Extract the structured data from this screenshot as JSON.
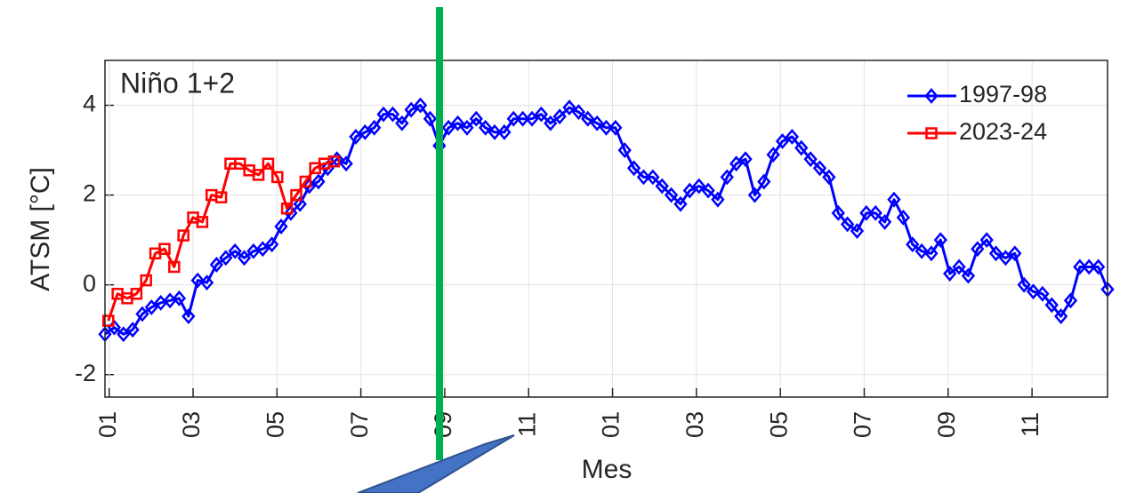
{
  "chart_data": {
    "type": "line",
    "annotation": "Niño 1+2",
    "xlabel": "Mes",
    "ylabel": "ATSM [°C]",
    "xlim": [
      -0.1,
      23.8
    ],
    "ylim": [
      -2.5,
      5
    ],
    "yticks": [
      -2,
      0,
      2,
      4
    ],
    "xticks": [
      {
        "value": 0,
        "label": "01"
      },
      {
        "value": 2,
        "label": "03"
      },
      {
        "value": 4,
        "label": "05"
      },
      {
        "value": 6,
        "label": "07"
      },
      {
        "value": 8,
        "label": "09"
      },
      {
        "value": 10,
        "label": "11"
      },
      {
        "value": 12,
        "label": "01"
      },
      {
        "value": 14,
        "label": "03"
      },
      {
        "value": 16,
        "label": "05"
      },
      {
        "value": 18,
        "label": "07"
      },
      {
        "value": 20,
        "label": "09"
      },
      {
        "value": 22,
        "label": "11"
      }
    ],
    "grid": true,
    "legend": "upper right",
    "series": [
      {
        "name": "1997-98",
        "color": "#0000ff",
        "marker": "diamond",
        "x": [
          -0.1,
          0.12,
          0.34,
          0.56,
          0.79,
          1.01,
          1.23,
          1.45,
          1.67,
          1.89,
          2.11,
          2.33,
          2.56,
          2.78,
          3.0,
          3.22,
          3.44,
          3.66,
          3.88,
          4.1,
          4.33,
          4.55,
          4.77,
          4.99,
          5.21,
          5.43,
          5.65,
          5.88,
          6.1,
          6.32,
          6.54,
          6.76,
          6.98,
          7.2,
          7.42,
          7.65,
          7.87,
          8.09,
          8.31,
          8.53,
          8.75,
          8.97,
          9.19,
          9.42,
          9.64,
          9.86,
          10.08,
          10.3,
          10.52,
          10.74,
          10.97,
          11.19,
          11.41,
          11.63,
          11.85,
          12.07,
          12.29,
          12.51,
          12.74,
          12.96,
          13.18,
          13.4,
          13.62,
          13.84,
          14.06,
          14.28,
          14.51,
          14.73,
          14.95,
          15.17,
          15.39,
          15.61,
          15.83,
          16.05,
          16.28,
          16.5,
          16.72,
          16.94,
          17.16,
          17.38,
          17.6,
          17.83,
          18.05,
          18.27,
          18.49,
          18.71,
          18.93,
          19.15,
          19.37,
          19.6,
          19.82,
          20.04,
          20.26,
          20.48,
          20.7,
          20.92,
          21.14,
          21.37,
          21.59,
          21.81,
          22.03,
          22.25,
          22.47,
          22.69,
          22.92,
          23.14,
          23.36,
          23.58,
          23.8
        ],
        "values": [
          -1.1,
          -0.95,
          -1.1,
          -1.0,
          -0.65,
          -0.5,
          -0.4,
          -0.35,
          -0.3,
          -0.7,
          0.1,
          0.05,
          0.45,
          0.6,
          0.75,
          0.6,
          0.75,
          0.8,
          0.9,
          1.3,
          1.6,
          1.8,
          2.2,
          2.3,
          2.6,
          2.8,
          2.7,
          3.3,
          3.4,
          3.5,
          3.8,
          3.8,
          3.6,
          3.9,
          4.0,
          3.7,
          3.1,
          3.5,
          3.6,
          3.5,
          3.7,
          3.5,
          3.4,
          3.4,
          3.7,
          3.7,
          3.7,
          3.8,
          3.6,
          3.75,
          3.95,
          3.85,
          3.7,
          3.6,
          3.5,
          3.5,
          3.0,
          2.6,
          2.4,
          2.4,
          2.2,
          2.0,
          1.8,
          2.1,
          2.2,
          2.1,
          1.9,
          2.4,
          2.7,
          2.8,
          2.0,
          2.3,
          2.9,
          3.2,
          3.3,
          3.05,
          2.8,
          2.6,
          2.4,
          1.6,
          1.35,
          1.2,
          1.6,
          1.6,
          1.4,
          1.9,
          1.5,
          0.9,
          0.75,
          0.7,
          1.0,
          0.25,
          0.4,
          0.2,
          0.8,
          1.0,
          0.7,
          0.6,
          0.7,
          0.0,
          -0.15,
          -0.2,
          -0.45,
          -0.7,
          -0.35,
          0.4,
          0.4,
          0.4,
          -0.1
        ]
      },
      {
        "name": "2023-24",
        "color": "#ff0000",
        "marker": "square",
        "x": [
          -0.02,
          0.2,
          0.43,
          0.65,
          0.88,
          1.1,
          1.32,
          1.55,
          1.77,
          2.0,
          2.22,
          2.44,
          2.67,
          2.89,
          3.12,
          3.34,
          3.56,
          3.79,
          4.01,
          4.24,
          4.46,
          4.68,
          4.91,
          5.13,
          5.36
        ],
        "values": [
          -0.8,
          -0.2,
          -0.3,
          -0.2,
          0.1,
          0.7,
          0.8,
          0.4,
          1.1,
          1.5,
          1.4,
          2.0,
          1.95,
          2.7,
          2.7,
          2.55,
          2.45,
          2.7,
          2.4,
          1.7,
          2.0,
          2.3,
          2.6,
          2.7,
          2.75
        ]
      }
    ]
  }
}
